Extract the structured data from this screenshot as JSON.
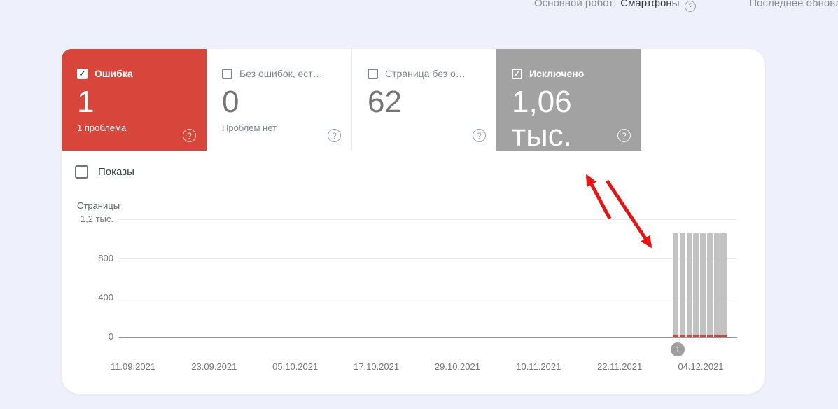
{
  "header": {
    "crawler_label": "Основной робот:",
    "crawler_value": "Смартфоны",
    "help_icon": "?",
    "last_update": "Последнее обновл"
  },
  "cards": [
    {
      "label": "Ошибка",
      "value": "1",
      "subtitle": "1 проблема",
      "help_icon": "?",
      "checked": true,
      "style": "red"
    },
    {
      "label": "Без ошибок, ест…",
      "value": "0",
      "subtitle": "Проблем нет",
      "help_icon": "?",
      "checked": false,
      "style": "white"
    },
    {
      "label": "Страница без о…",
      "value": "62",
      "subtitle": "",
      "help_icon": "?",
      "checked": false,
      "style": "white"
    },
    {
      "label": "Исключено",
      "value": "1,06 тыс.",
      "subtitle": "",
      "help_icon": "?",
      "checked": true,
      "style": "gray"
    }
  ],
  "impressions": {
    "label": "Показы",
    "checked": false
  },
  "checkmark_glyph": "✓",
  "chart_data": {
    "type": "bar",
    "title": "",
    "xlabel": "",
    "ylabel": "Страницы",
    "ylim": [
      0,
      1200
    ],
    "grid": "horizontal",
    "legend": "none",
    "y_ticks": [
      {
        "label": "1,2 тыс.",
        "value": 1200
      },
      {
        "label": "800",
        "value": 800
      },
      {
        "label": "400",
        "value": 400
      },
      {
        "label": "0",
        "value": 0
      }
    ],
    "x_tick_labels": [
      "11.09.2021",
      "23.09.2021",
      "05.10.2021",
      "17.10.2021",
      "29.10.2021",
      "10.11.2021",
      "22.11.2021",
      "04.12.2021"
    ],
    "series": [
      {
        "name": "Исключено",
        "color": "#c2c2c2",
        "values": [
          1060,
          1060,
          1060,
          1060,
          1060,
          1060,
          1060,
          1060
        ]
      },
      {
        "name": "Ошибка",
        "color": "#d8463b",
        "values": [
          1,
          1,
          1,
          1,
          1,
          1,
          1,
          1
        ]
      }
    ],
    "layout_note": "8 tightly-packed daily bars at right end of date axis, just before 04.12.2021",
    "marker_label": "1"
  },
  "colors": {
    "background": "#eef1fb",
    "error_red": "#d8463b",
    "excluded_gray": "#a2a2a2",
    "bar_gray": "#c2c2c2",
    "arrow_red": "#e81412",
    "marker_gray": "#9e9e9e"
  }
}
